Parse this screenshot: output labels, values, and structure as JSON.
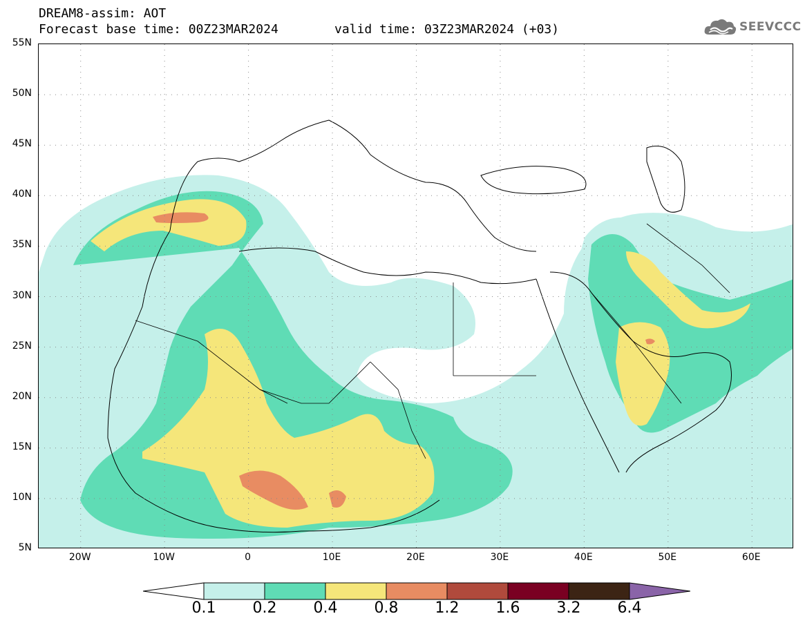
{
  "header": {
    "title": "DREAM8-assim: AOT",
    "base_time": "Forecast base time: 00Z23MAR2024",
    "valid_time": "valid time: 03Z23MAR2024 (+03)"
  },
  "logo": {
    "text": "SEEVCCC",
    "icon": "cloud-logo-icon"
  },
  "map": {
    "lat_labels": [
      "55N",
      "50N",
      "45N",
      "40N",
      "35N",
      "30N",
      "25N",
      "20N",
      "15N",
      "10N",
      "5N"
    ],
    "lon_labels": [
      "20W",
      "10W",
      "0",
      "10E",
      "20E",
      "30E",
      "40E",
      "50E",
      "60E"
    ],
    "lon_range": [
      -25,
      65
    ],
    "lat_range": [
      5,
      55
    ],
    "variable": "AOT"
  },
  "colorbar": {
    "labels": [
      "0.1",
      "0.2",
      "0.4",
      "0.8",
      "1.2",
      "1.6",
      "3.2",
      "6.4"
    ],
    "colors": [
      "#ffffff",
      "#c5f0ea",
      "#5fdcb5",
      "#f5e67a",
      "#e88c62",
      "#b04a3c",
      "#7a0022",
      "#3c2414",
      "#8a64a8"
    ],
    "extend": "both"
  },
  "colors": {
    "c1": "#c5f0ea",
    "c2": "#5fdcb5",
    "c3": "#f5e67a",
    "c4": "#e88c62",
    "c5": "#b04a3c",
    "c6": "#7a0022",
    "c7": "#3c2414",
    "c8": "#8a64a8"
  }
}
